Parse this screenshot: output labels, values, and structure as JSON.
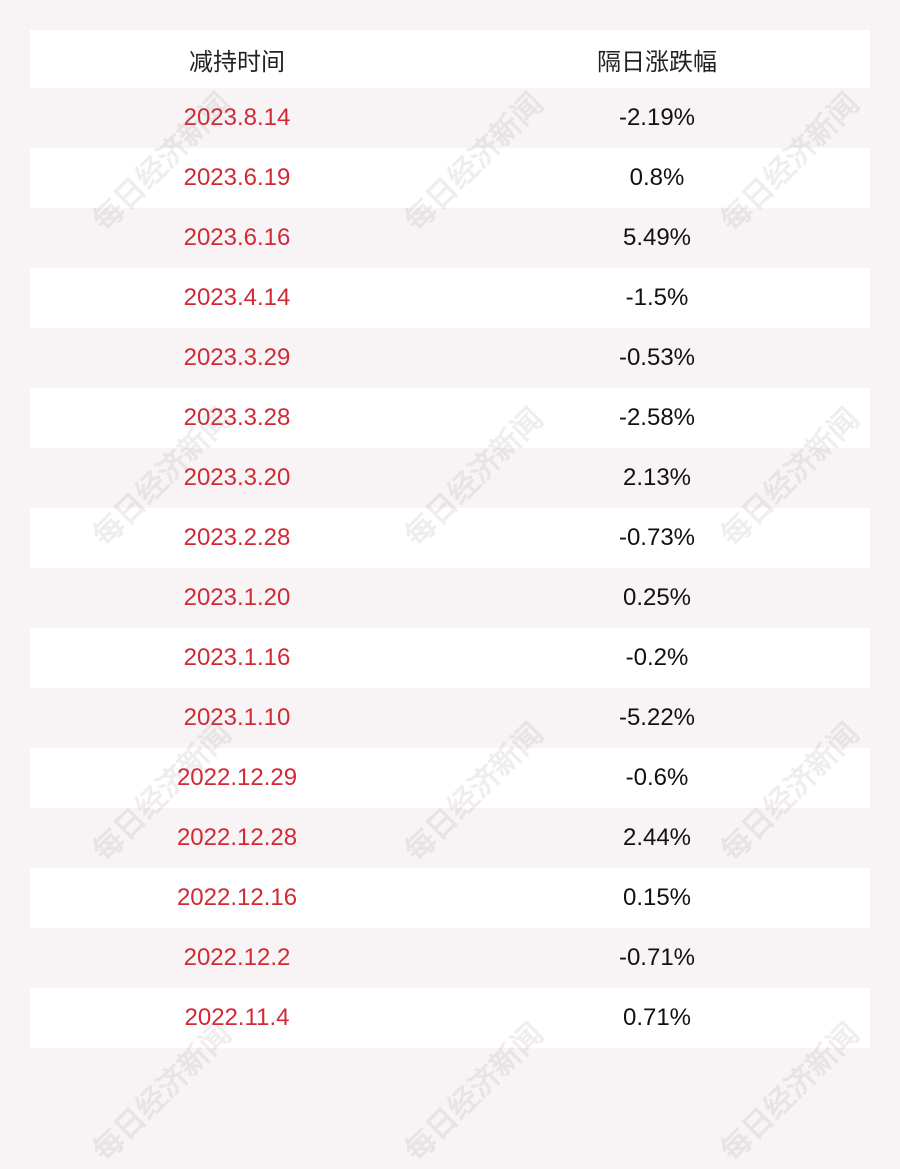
{
  "watermark": "每日经济新闻",
  "table": {
    "header": [
      "减持时间",
      "隔日涨跌幅"
    ],
    "rows": [
      [
        "2023.8.14",
        "-2.19%"
      ],
      [
        "2023.6.19",
        "0.8%"
      ],
      [
        "2023.6.16",
        "5.49%"
      ],
      [
        "2023.4.14",
        "-1.5%"
      ],
      [
        "2023.3.29",
        "-0.53%"
      ],
      [
        "2023.3.28",
        "-2.58%"
      ],
      [
        "2023.3.20",
        "2.13%"
      ],
      [
        "2023.2.28",
        "-0.73%"
      ],
      [
        "2023.1.20",
        "0.25%"
      ],
      [
        "2023.1.16",
        "-0.2%"
      ],
      [
        "2023.1.10",
        "-5.22%"
      ],
      [
        "2022.12.29",
        "-0.6%"
      ],
      [
        "2022.12.28",
        "2.44%"
      ],
      [
        "2022.12.16",
        "0.15%"
      ],
      [
        "2022.12.2",
        "-0.71%"
      ],
      [
        "2022.11.4",
        "0.71%"
      ]
    ]
  }
}
